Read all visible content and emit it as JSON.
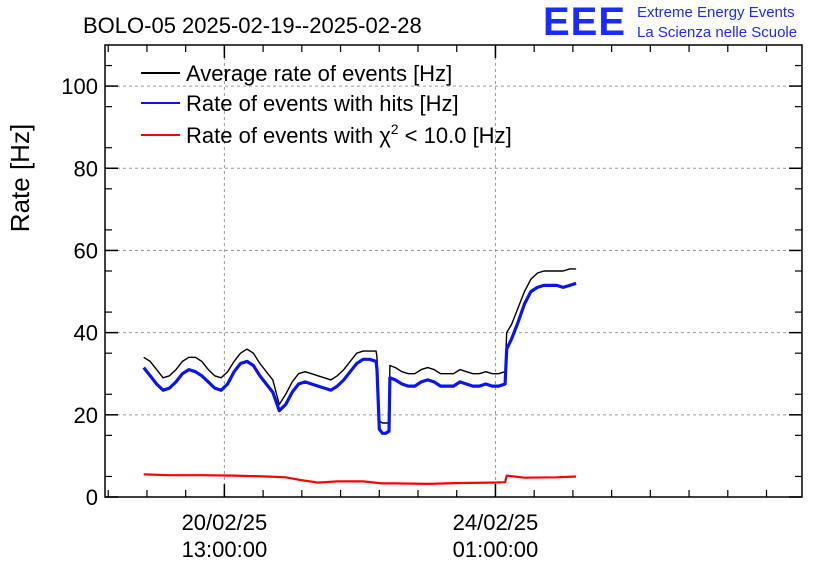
{
  "logo": {
    "mark": "EEE",
    "line1": "Extreme Energy Events",
    "line2": "La Scienza nelle Scuole"
  },
  "colors": {
    "average": "#000000",
    "hits": "#0a14f0",
    "chi2": "#ff0000",
    "logo": "#1a2bff",
    "grid": "#9a9a9a"
  },
  "chart_data": {
    "type": "line",
    "title": "BOLO-05 2025-02-19--2025-02-28",
    "xlabel": "",
    "ylabel": "Rate [Hz]",
    "x_unit": "hours since 19/02/25 00:00 (axis shows dates)",
    "xlim": [
      0,
      216
    ],
    "ylim": [
      0,
      110
    ],
    "yticks": [
      0,
      20,
      40,
      60,
      80,
      100
    ],
    "xtick_labels": [
      {
        "x": 37,
        "date": "20/02/25",
        "time": "13:00:00"
      },
      {
        "x": 121,
        "date": "24/02/25",
        "time": "01:00:00"
      }
    ],
    "grid": true,
    "legend_position": "top-left",
    "series": [
      {
        "name": "Average rate of events [Hz]",
        "legend": "Average rate of events [Hz]",
        "x": [
          12,
          14,
          16,
          18,
          20,
          22,
          24,
          26,
          28,
          30,
          32,
          34,
          36,
          38,
          40,
          42,
          44,
          46,
          48,
          50,
          52,
          54,
          56,
          58,
          60,
          62,
          64,
          66,
          68,
          70,
          72,
          74,
          76,
          78,
          80,
          82,
          84,
          84.3,
          85,
          86,
          87,
          88,
          88.3,
          90,
          92,
          94,
          96,
          98,
          100,
          102,
          104,
          106,
          108,
          110,
          112,
          114,
          116,
          118,
          120,
          122,
          124,
          124.5,
          126,
          128,
          130,
          132,
          134,
          136,
          138,
          140,
          142,
          144,
          146
        ],
        "values": [
          34,
          33,
          31,
          29,
          29.5,
          31,
          33,
          34,
          34,
          33,
          31,
          29.5,
          29,
          30.5,
          33,
          35,
          36,
          35,
          32.5,
          30.5,
          28.5,
          22.5,
          25,
          28,
          30,
          30.5,
          30,
          29.5,
          29,
          28.5,
          29.5,
          31,
          33,
          35,
          35.5,
          35.5,
          35.5,
          34,
          18.5,
          18,
          18,
          18,
          32,
          31.5,
          30.5,
          30,
          30,
          31,
          31.5,
          31,
          30,
          30,
          30,
          31,
          30.5,
          30,
          30,
          30.5,
          30,
          30,
          30.5,
          40,
          42,
          46,
          50,
          53,
          54.5,
          55,
          55,
          55,
          55,
          55.5,
          55.5
        ]
      },
      {
        "name": "Rate of events with hits [Hz]",
        "legend": "Rate of events with hits [Hz]",
        "x": [
          12,
          14,
          16,
          18,
          20,
          22,
          24,
          26,
          28,
          30,
          32,
          34,
          36,
          38,
          40,
          42,
          44,
          46,
          48,
          50,
          52,
          54,
          56,
          58,
          60,
          62,
          64,
          66,
          68,
          70,
          72,
          74,
          76,
          78,
          80,
          82,
          84,
          84.3,
          85,
          86,
          87,
          88,
          88.3,
          90,
          92,
          94,
          96,
          98,
          100,
          102,
          104,
          106,
          108,
          110,
          112,
          114,
          116,
          118,
          120,
          122,
          124,
          124.5,
          126,
          128,
          130,
          132,
          134,
          136,
          138,
          140,
          142,
          144,
          146
        ],
        "values": [
          31.5,
          29.5,
          27.5,
          26,
          26.5,
          28,
          30,
          31,
          30.5,
          29.5,
          28,
          26.5,
          26,
          27.5,
          30.5,
          32.5,
          33,
          32,
          29.5,
          27.5,
          25.5,
          21,
          22.5,
          25.5,
          27.5,
          28,
          27.5,
          27,
          26.5,
          26,
          27,
          28.5,
          30.5,
          32.5,
          33.5,
          33.5,
          33,
          31,
          16.5,
          15.5,
          15.5,
          16,
          29,
          28.5,
          27.5,
          27,
          27,
          28,
          28.5,
          28,
          27,
          27,
          27,
          28,
          27.5,
          27,
          27,
          27.5,
          27,
          27,
          27.5,
          36,
          38.5,
          42.5,
          47,
          50,
          51,
          51.5,
          51.5,
          51.5,
          51,
          51.5,
          52
        ]
      },
      {
        "name": "Rate of events with χ² < 10.0 [Hz]",
        "legend_prefix": "Rate of events with χ",
        "legend_sup": "2",
        "legend_suffix": " < 10.0 [Hz]",
        "x": [
          12,
          20,
          30,
          40,
          50,
          56,
          60,
          66,
          72,
          80,
          86,
          90,
          100,
          110,
          120,
          124,
          124.5,
          130,
          140,
          146
        ],
        "values": [
          5.5,
          5.3,
          5.3,
          5.2,
          5,
          4.8,
          4.2,
          3.5,
          3.8,
          3.8,
          3.3,
          3.3,
          3.2,
          3.4,
          3.5,
          3.6,
          5.2,
          4.7,
          4.8,
          5
        ]
      }
    ]
  }
}
